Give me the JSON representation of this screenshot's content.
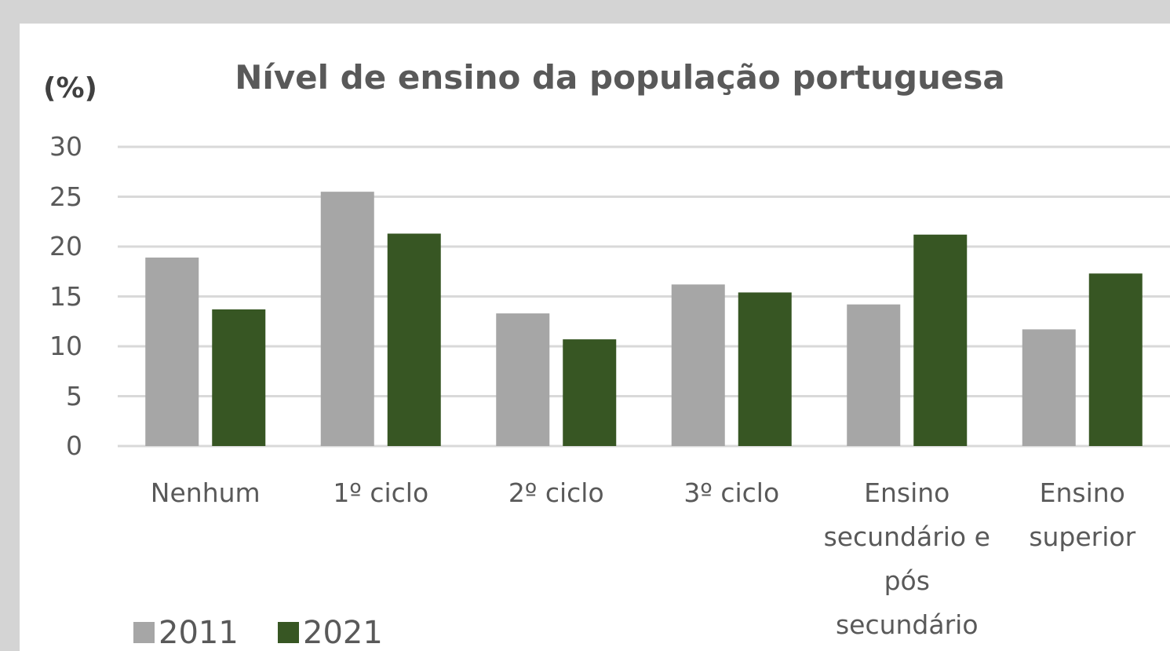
{
  "chart_data": {
    "type": "bar",
    "title": "Nível de ensino da população portuguesa",
    "y_label": "(%)",
    "categories": [
      "Nenhum",
      "1º ciclo",
      "2º ciclo",
      "3º ciclo",
      "Ensino secundário e pós secundário",
      "Ensino superior"
    ],
    "series": [
      {
        "name": "2011",
        "color": "#a6a6a6",
        "values": [
          18.9,
          25.5,
          13.3,
          16.2,
          14.2,
          11.7
        ]
      },
      {
        "name": "2021",
        "color": "#375623",
        "values": [
          13.7,
          21.3,
          10.7,
          15.4,
          21.2,
          17.3
        ]
      }
    ],
    "ylim": [
      0,
      30
    ],
    "yticks": [
      0,
      5,
      10,
      15,
      20,
      25,
      30
    ],
    "grid": true,
    "legend": "bottom-left"
  }
}
